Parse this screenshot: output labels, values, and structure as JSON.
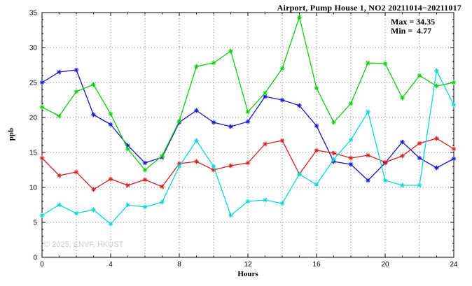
{
  "chart_data": {
    "type": "line",
    "title": "Airport, Pump House 1, NO2 20211014−20211017",
    "annotations": {
      "max": "Max = 34.35",
      "min": "Min =  4.77"
    },
    "watermark": "© 2025, ENVF, HKUST",
    "xlabel": "Hours",
    "ylabel": "ppb",
    "xlim": [
      0,
      24
    ],
    "ylim": [
      0,
      35
    ],
    "xticks": [
      0,
      4,
      8,
      12,
      16,
      20,
      24
    ],
    "yticks": [
      0,
      5,
      10,
      15,
      20,
      25,
      30,
      35
    ],
    "grid": true,
    "legend_position": "none",
    "x": [
      0,
      1,
      2,
      3,
      4,
      5,
      6,
      7,
      8,
      9,
      10,
      11,
      12,
      13,
      14,
      15,
      16,
      17,
      18,
      19,
      20,
      21,
      22,
      23,
      24
    ],
    "series": [
      {
        "name": "blue",
        "color": "#1515cd",
        "values": [
          25.0,
          26.5,
          26.8,
          20.4,
          19.0,
          16.0,
          13.5,
          14.3,
          19.3,
          21.0,
          19.3,
          18.7,
          19.4,
          23.0,
          22.5,
          21.7,
          18.8,
          13.7,
          13.3,
          11.0,
          13.5,
          16.5,
          14.2,
          12.8,
          14.1
        ]
      },
      {
        "name": "green",
        "color": "#0fcc0f",
        "values": [
          21.5,
          20.2,
          23.7,
          24.7,
          20.5,
          15.5,
          12.5,
          14.5,
          19.5,
          27.3,
          27.8,
          29.5,
          20.8,
          23.5,
          27.0,
          34.35,
          24.2,
          19.3,
          22.0,
          27.8,
          27.7,
          22.8,
          26.0,
          24.5,
          25.0
        ]
      },
      {
        "name": "red",
        "color": "#d42020",
        "values": [
          14.2,
          11.7,
          12.2,
          9.7,
          11.2,
          10.3,
          11.1,
          10.1,
          13.4,
          13.7,
          12.5,
          13.1,
          13.5,
          16.2,
          16.7,
          11.9,
          15.3,
          14.9,
          14.2,
          14.6,
          13.6,
          14.5,
          16.3,
          17.0,
          15.5
        ]
      },
      {
        "name": "cyan",
        "color": "#0fd4d4",
        "values": [
          6.0,
          7.5,
          6.3,
          6.8,
          4.77,
          7.5,
          7.2,
          7.9,
          13.0,
          16.7,
          13.0,
          6.0,
          8.0,
          8.2,
          7.7,
          11.9,
          10.4,
          14.0,
          16.8,
          20.8,
          11.0,
          10.3,
          10.3,
          26.7,
          21.8
        ]
      }
    ]
  }
}
